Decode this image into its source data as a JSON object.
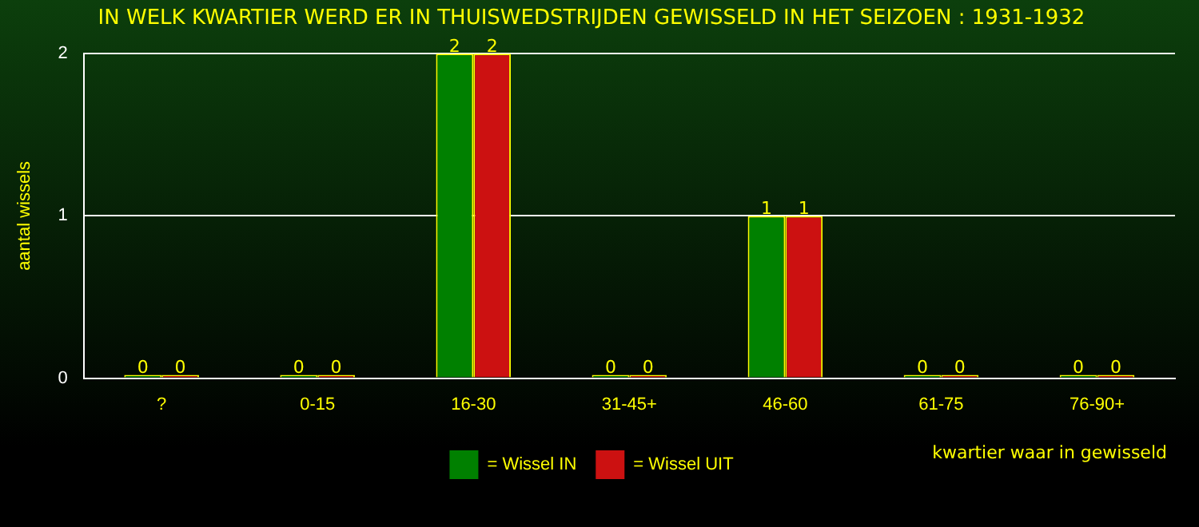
{
  "chart_data": {
    "type": "bar",
    "title": "IN WELK KWARTIER WERD ER IN THUISWEDSTRIJDEN GEWISSELD IN HET SEIZOEN : 1931-1932",
    "xlabel": "kwartier waar in gewisseld",
    "ylabel": "aantal wissels",
    "categories": [
      "?",
      "0-15",
      "16-30",
      "31-45+",
      "46-60",
      "61-75",
      "76-90+"
    ],
    "series": [
      {
        "name": "= Wissel IN",
        "color": "#008000",
        "values": [
          0,
          0,
          2,
          0,
          1,
          0,
          0
        ]
      },
      {
        "name": "= Wissel UIT",
        "color": "#cc1111",
        "values": [
          0,
          0,
          2,
          0,
          1,
          0,
          0
        ]
      }
    ],
    "ylim": [
      0,
      2
    ],
    "yticks": [
      0,
      1,
      2
    ],
    "grid": "y",
    "legend": "bottom",
    "data_labels": true
  }
}
